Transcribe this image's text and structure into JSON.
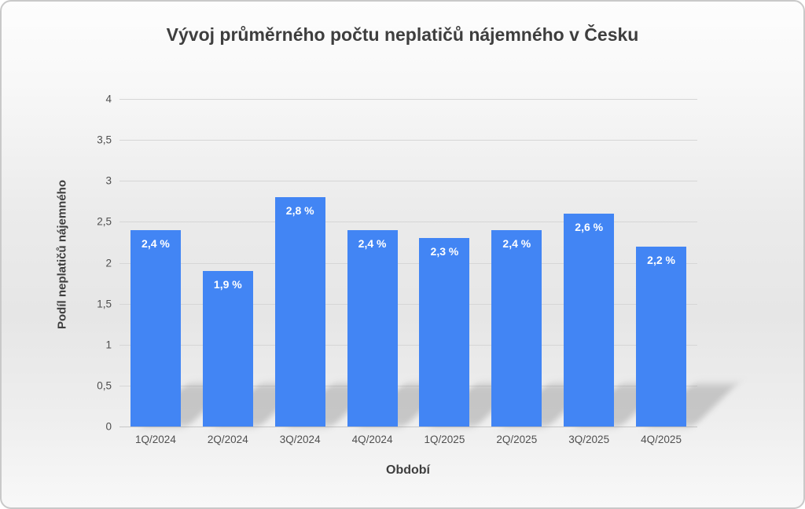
{
  "chart_data": {
    "type": "bar",
    "title": "Vývoj průměrného počtu neplatičů nájemného v Česku",
    "xlabel": "Období",
    "ylabel": "Podíl neplatičů nájemného",
    "categories": [
      "1Q/2024",
      "2Q/2024",
      "3Q/2024",
      "4Q/2024",
      "1Q/2025",
      "2Q/2025",
      "3Q/2025",
      "4Q/2025"
    ],
    "values": [
      2.4,
      1.9,
      2.8,
      2.4,
      2.3,
      2.4,
      2.6,
      2.2
    ],
    "value_labels": [
      "2,4 %",
      "1,9 %",
      "2,8 %",
      "2,4 %",
      "2,3 %",
      "2,4 %",
      "2,6 %",
      "2,2 %"
    ],
    "ylim": [
      0,
      4
    ],
    "ytick_values": [
      0,
      0.5,
      1,
      1.5,
      2,
      2.5,
      3,
      3.5,
      4
    ],
    "ytick_labels": [
      "0",
      "0,5",
      "1",
      "1,5",
      "2",
      "2,5",
      "3",
      "3,5",
      "4"
    ],
    "grid": "horizontal",
    "legend": "none",
    "bar_color": "#4285f4",
    "value_label_color": "#ffffff",
    "text_color": "#3e3e3e"
  }
}
